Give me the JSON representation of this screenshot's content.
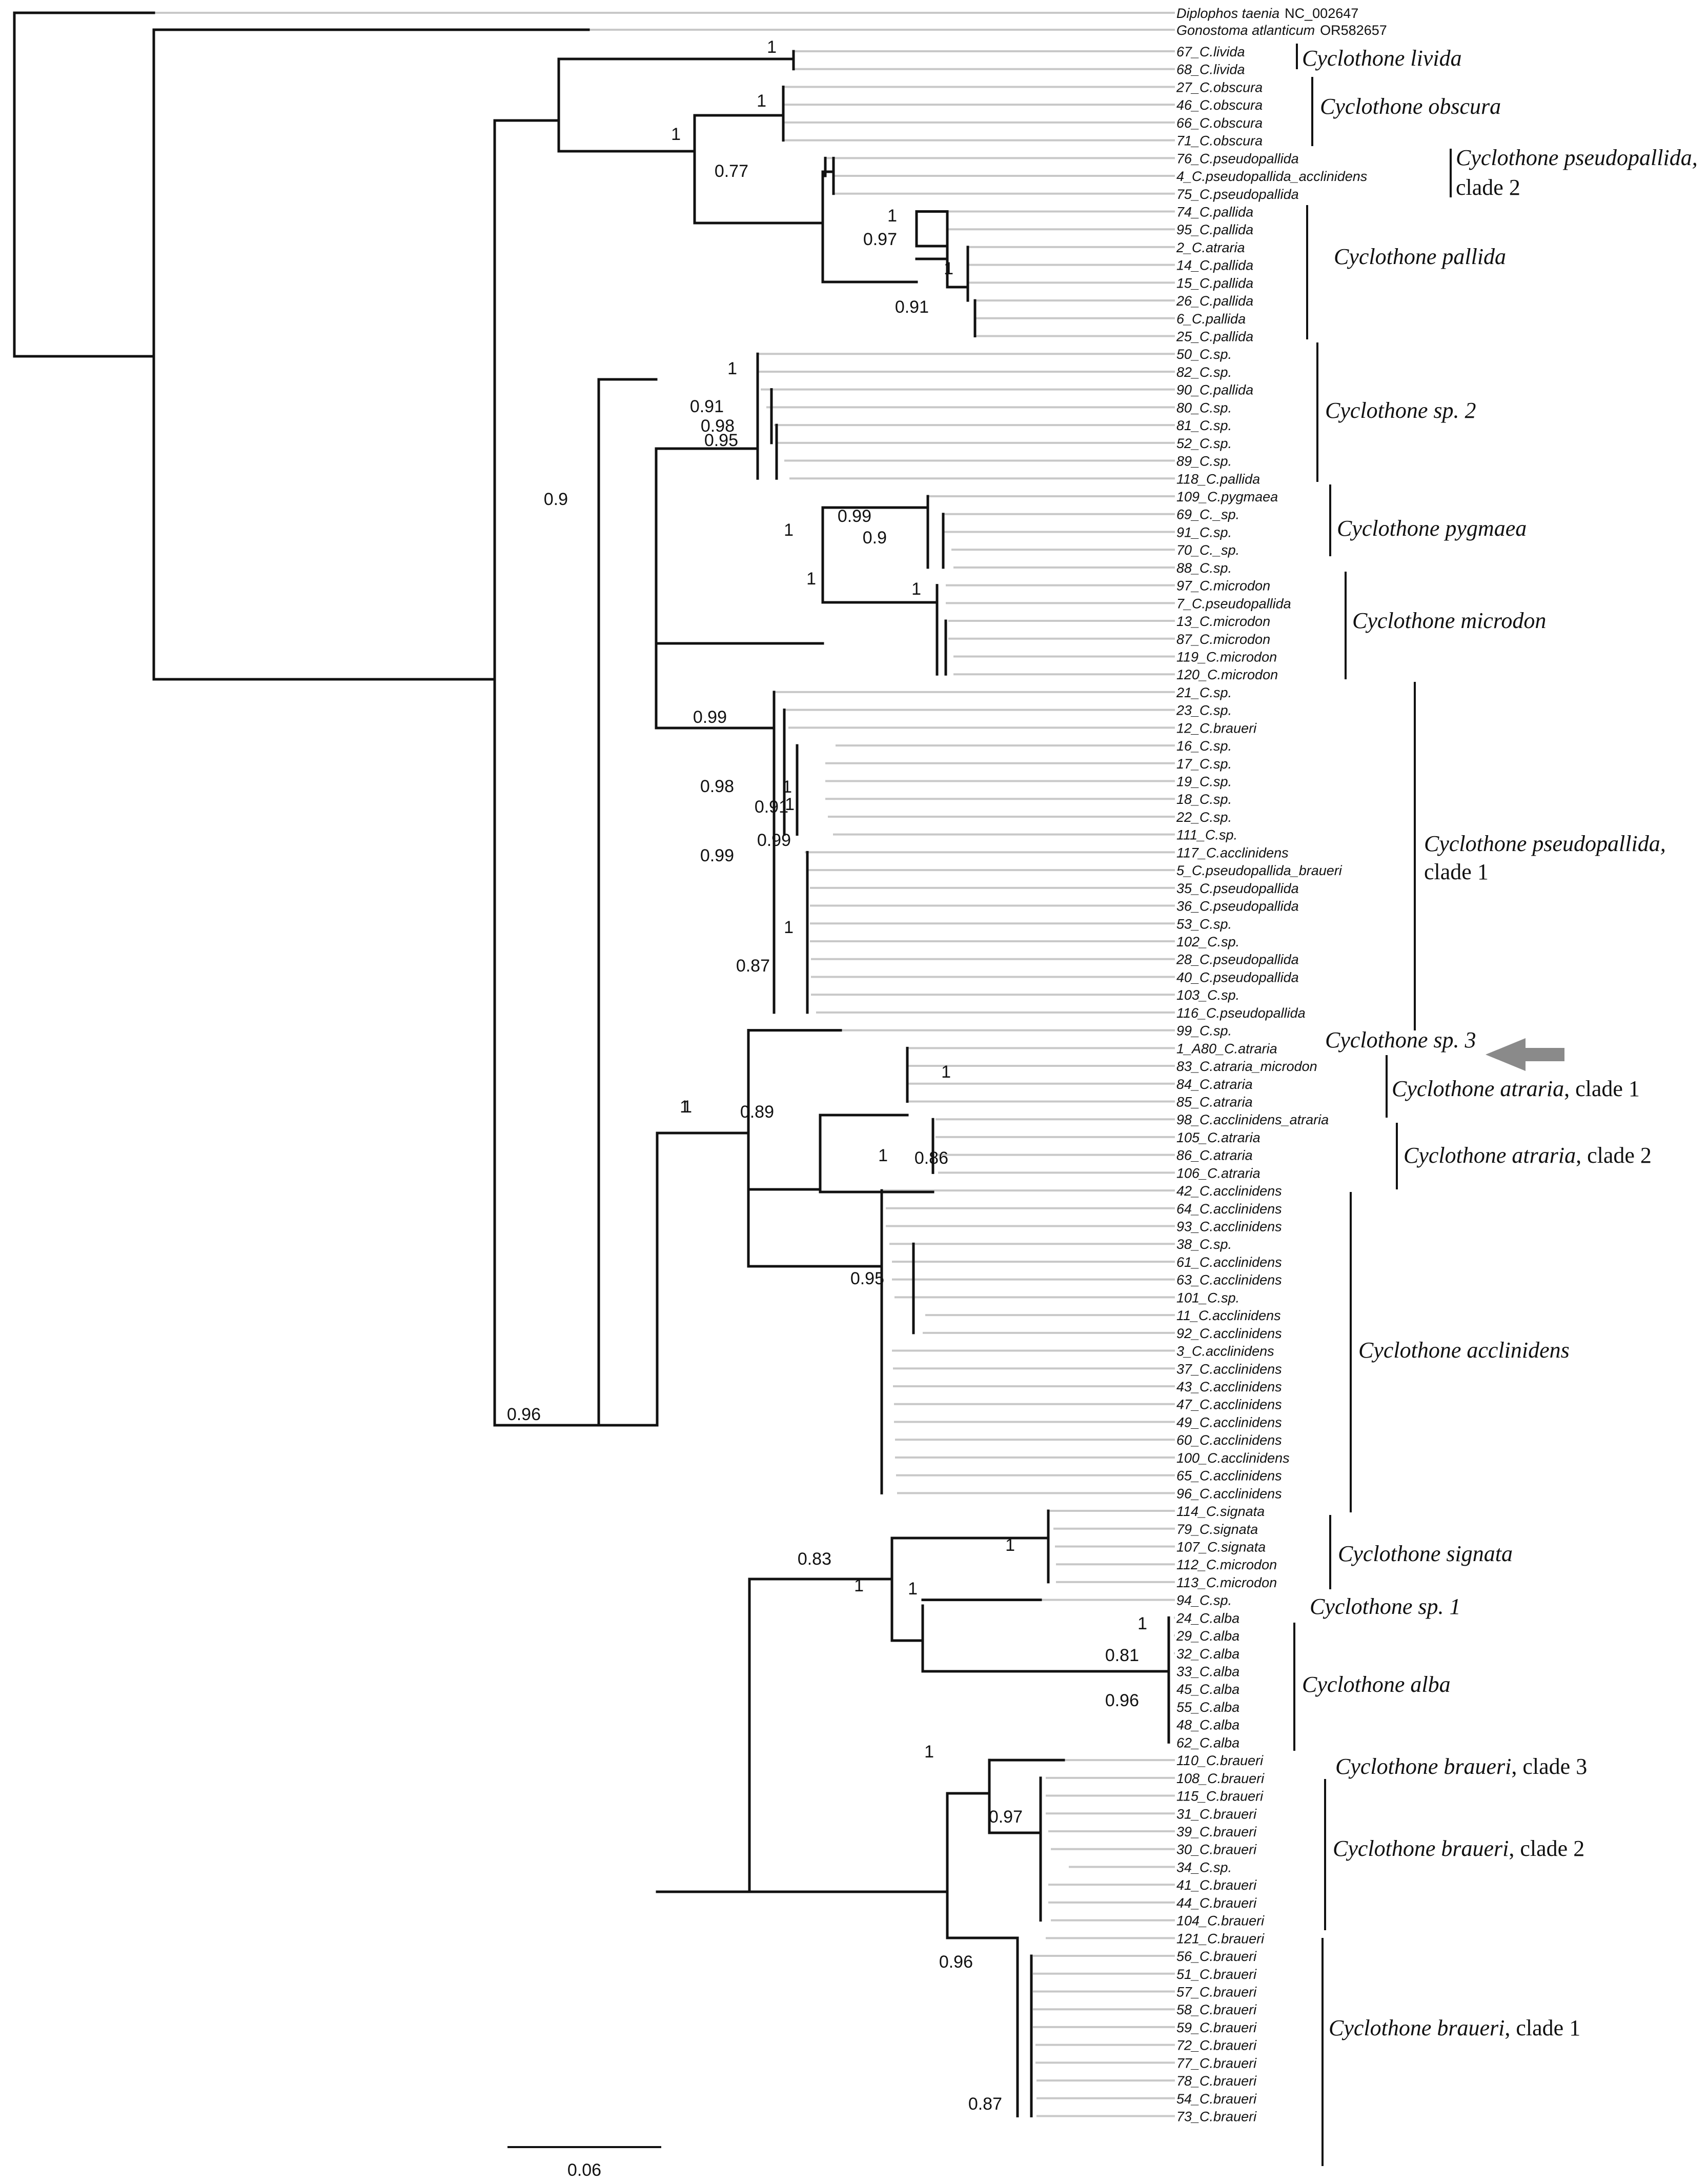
{
  "tree": {
    "outgroup_tips": [
      "Diplophos taenia",
      "NC_002647",
      "Gonostoma atlanticum",
      "OR582657"
    ],
    "tips": [
      "67_C.livida",
      "68_C.livida",
      "27_C.obscura",
      "46_C.obscura",
      "66_C.obscura",
      "71_C.obscura",
      "76_C.pseudopallida",
      "4_C.pseudopallida_acclinidens",
      "75_C.pseudopallida",
      "74_C.pallida",
      "95_C.pallida",
      "2_C.atraria",
      "14_C.pallida",
      "15_C.pallida",
      "26_C.pallida",
      "6_C.pallida",
      "25_C.pallida",
      "50_C.sp.",
      "82_C.sp.",
      "90_C.pallida",
      "80_C.sp.",
      "81_C.sp.",
      "52_C.sp.",
      "89_C.sp.",
      "118_C.pallida",
      "109_C.pygmaea",
      "69_C._sp.",
      "91_C.sp.",
      "70_C._sp.",
      "88_C.sp.",
      "97_C.microdon",
      "7_C.pseudopallida",
      "13_C.microdon",
      "87_C.microdon",
      "119_C.microdon",
      "120_C.microdon",
      "21_C.sp.",
      "23_C.sp.",
      "12_C.braueri",
      "16_C.sp.",
      "17_C.sp.",
      "19_C.sp.",
      "18_C.sp.",
      "22_C.sp.",
      "111_C.sp.",
      "117_C.acclinidens",
      "5_C.pseudopallida_braueri",
      "35_C.pseudopallida",
      "36_C.pseudopallida",
      "53_C.sp.",
      "102_C.sp.",
      "28_C.pseudopallida",
      "40_C.pseudopallida",
      "103_C.sp.",
      "116_C.pseudopallida",
      "99_C.sp.",
      "1_A80_C.atraria",
      "83_C.atraria_microdon",
      "84_C.atraria",
      "85_C.atraria",
      "98_C.acclinidens_atraria",
      "105_C.atraria",
      "86_C.atraria",
      "106_C.atraria",
      "42_C.acclinidens",
      "64_C.acclinidens",
      "93_C.acclinidens",
      "38_C.sp.",
      "61_C.acclinidens",
      "63_C.acclinidens",
      "101_C.sp.",
      "11_C.acclinidens",
      "92_C.acclinidens",
      "3_C.acclinidens",
      "37_C.acclinidens",
      "43_C.acclinidens",
      "47_C.acclinidens",
      "49_C.acclinidens",
      "60_C.acclinidens",
      "100_C.acclinidens",
      "65_C.acclinidens",
      "96_C.acclinidens",
      "114_C.signata",
      "79_C.signata",
      "107_C.signata",
      "112_C.microdon",
      "113_C.microdon",
      "94_C.sp.",
      "24_C.alba",
      "29_C.alba",
      "32_C.alba",
      "33_C.alba",
      "45_C.alba",
      "55_C.alba",
      "48_C.alba",
      "62_C.alba",
      "110_C.braueri",
      "108_C.braueri",
      "115_C.braueri",
      "31_C.braueri",
      "39_C.braueri",
      "30_C.braueri",
      "34_C.sp.",
      "41_C.braueri",
      "44_C.braueri",
      "104_C.braueri",
      "121_C.braueri",
      "56_C.braueri",
      "51_C.braueri",
      "57_C.braueri",
      "58_C.braueri",
      "59_C.braueri",
      "72_C.braueri",
      "77_C.braueri",
      "78_C.braueri",
      "54_C.braueri",
      "73_C.braueri"
    ],
    "support": [
      "1",
      "1",
      "1",
      "0.77",
      "1",
      "0.97",
      "1",
      "0.91",
      "1",
      "0.91",
      "0.98",
      "0.95",
      "0.9",
      "1",
      "0.99",
      "0.9",
      "1",
      "1",
      "0.99",
      "1",
      "0.98",
      "1",
      "0.91",
      "0.99",
      "0.99",
      "1",
      "0.87",
      "1",
      "1",
      "0.89",
      "1",
      "0.86",
      "1",
      "0.95",
      "0.96",
      "1",
      "0.83",
      "1",
      "1",
      "0.81",
      "0.96",
      "1",
      "1",
      "0.97",
      "0.96",
      "0.87"
    ],
    "clades": [
      {
        "name": "Cyclothone",
        "rest": " livida"
      },
      {
        "name": "Cyclothone",
        "rest": " obscura"
      },
      {
        "name": "Cyclothone",
        "rest": " pseudopallida,",
        "line2": "clade 2"
      },
      {
        "name": "Cyclothone",
        "rest": " pallida"
      },
      {
        "name": "Cyclothone",
        "rest": " sp. 2"
      },
      {
        "name": "Cyclothone",
        "rest": " pygmaea"
      },
      {
        "name": "Cyclothone",
        "rest": " microdon"
      },
      {
        "name": "Cyclothone",
        "rest": " pseudopallida,",
        "line2": "clade 1"
      },
      {
        "name": "Cyclothone",
        "rest": " sp. 3"
      },
      {
        "name": "Cyclothone",
        "rest": " atraria",
        "suffix": ", clade 1"
      },
      {
        "name": "Cyclothone",
        "rest": " atraria",
        "suffix": ", clade 2"
      },
      {
        "name": "Cyclothone",
        "rest": " acclinidens"
      },
      {
        "name": "Cyclothone",
        "rest": " signata"
      },
      {
        "name": "Cyclothone",
        "rest": " sp. 1"
      },
      {
        "name": "Cyclothone",
        "rest": " alba"
      },
      {
        "name": "Cyclothone",
        "rest": " braueri",
        "suffix": ", clade 3"
      },
      {
        "name": "Cyclothone",
        "rest": " braueri",
        "suffix": ", clade 2"
      },
      {
        "name": "Cyclothone",
        "rest": " braueri",
        "suffix": ", clade 1"
      }
    ],
    "scale_bar": "0.06",
    "colors": {
      "branch": "#111111",
      "tip_line": "#c8c8c8",
      "arrow": "#8a8a8a"
    }
  }
}
